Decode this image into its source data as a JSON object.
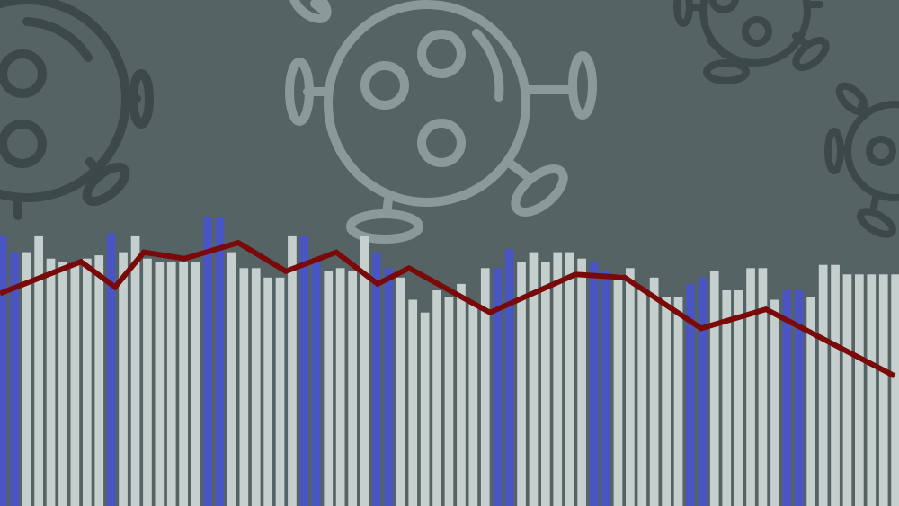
{
  "background_color": "#566364",
  "colors": {
    "bar_light": "#c5d0ce",
    "bar_highlight": "#4a55c4",
    "trend_line": "#7a0a0a",
    "virus_light": "#8a9999",
    "virus_dark": "#3c4849"
  },
  "decorations": [
    {
      "name": "virus-icon-center",
      "tone": "light"
    },
    {
      "name": "virus-icon-left",
      "tone": "dark"
    },
    {
      "name": "virus-icon-top-right",
      "tone": "dark"
    },
    {
      "name": "virus-icon-right",
      "tone": "dark"
    }
  ],
  "chart_data": {
    "type": "bar",
    "title": "",
    "xlabel": "",
    "ylabel": "",
    "ylim": [
      0,
      100
    ],
    "grid": false,
    "legend": "none",
    "series": [
      {
        "kind": "bar",
        "values": [
          85,
          80,
          80,
          85,
          78,
          77,
          77,
          78,
          79,
          86,
          80,
          85,
          78,
          77,
          77,
          77,
          77,
          91,
          91,
          80,
          75,
          75,
          72,
          72,
          85,
          85,
          78,
          74,
          75,
          74,
          85,
          80,
          75,
          72,
          65,
          61,
          68,
          66,
          70,
          64,
          75,
          75,
          81,
          77,
          80,
          77,
          80,
          80,
          78,
          77,
          74,
          73,
          75,
          68,
          72,
          66,
          66,
          70,
          72,
          74,
          68,
          68,
          75,
          75,
          65,
          68,
          68,
          66,
          76,
          76,
          73,
          73,
          73,
          73,
          73
        ],
        "highlight": [
          0,
          1,
          9,
          17,
          18,
          25,
          26,
          31,
          32,
          41,
          42,
          49,
          50,
          57,
          58,
          65,
          66
        ]
      },
      {
        "kind": "line",
        "x": [
          0,
          90,
          128,
          160,
          205,
          265,
          318,
          374,
          420,
          455,
          545,
          640,
          695,
          780,
          852,
          995
        ],
        "values": [
          67,
          77,
          69,
          80,
          78,
          83,
          74,
          80,
          70,
          75,
          61,
          73,
          72,
          56,
          62,
          41
        ]
      }
    ]
  }
}
